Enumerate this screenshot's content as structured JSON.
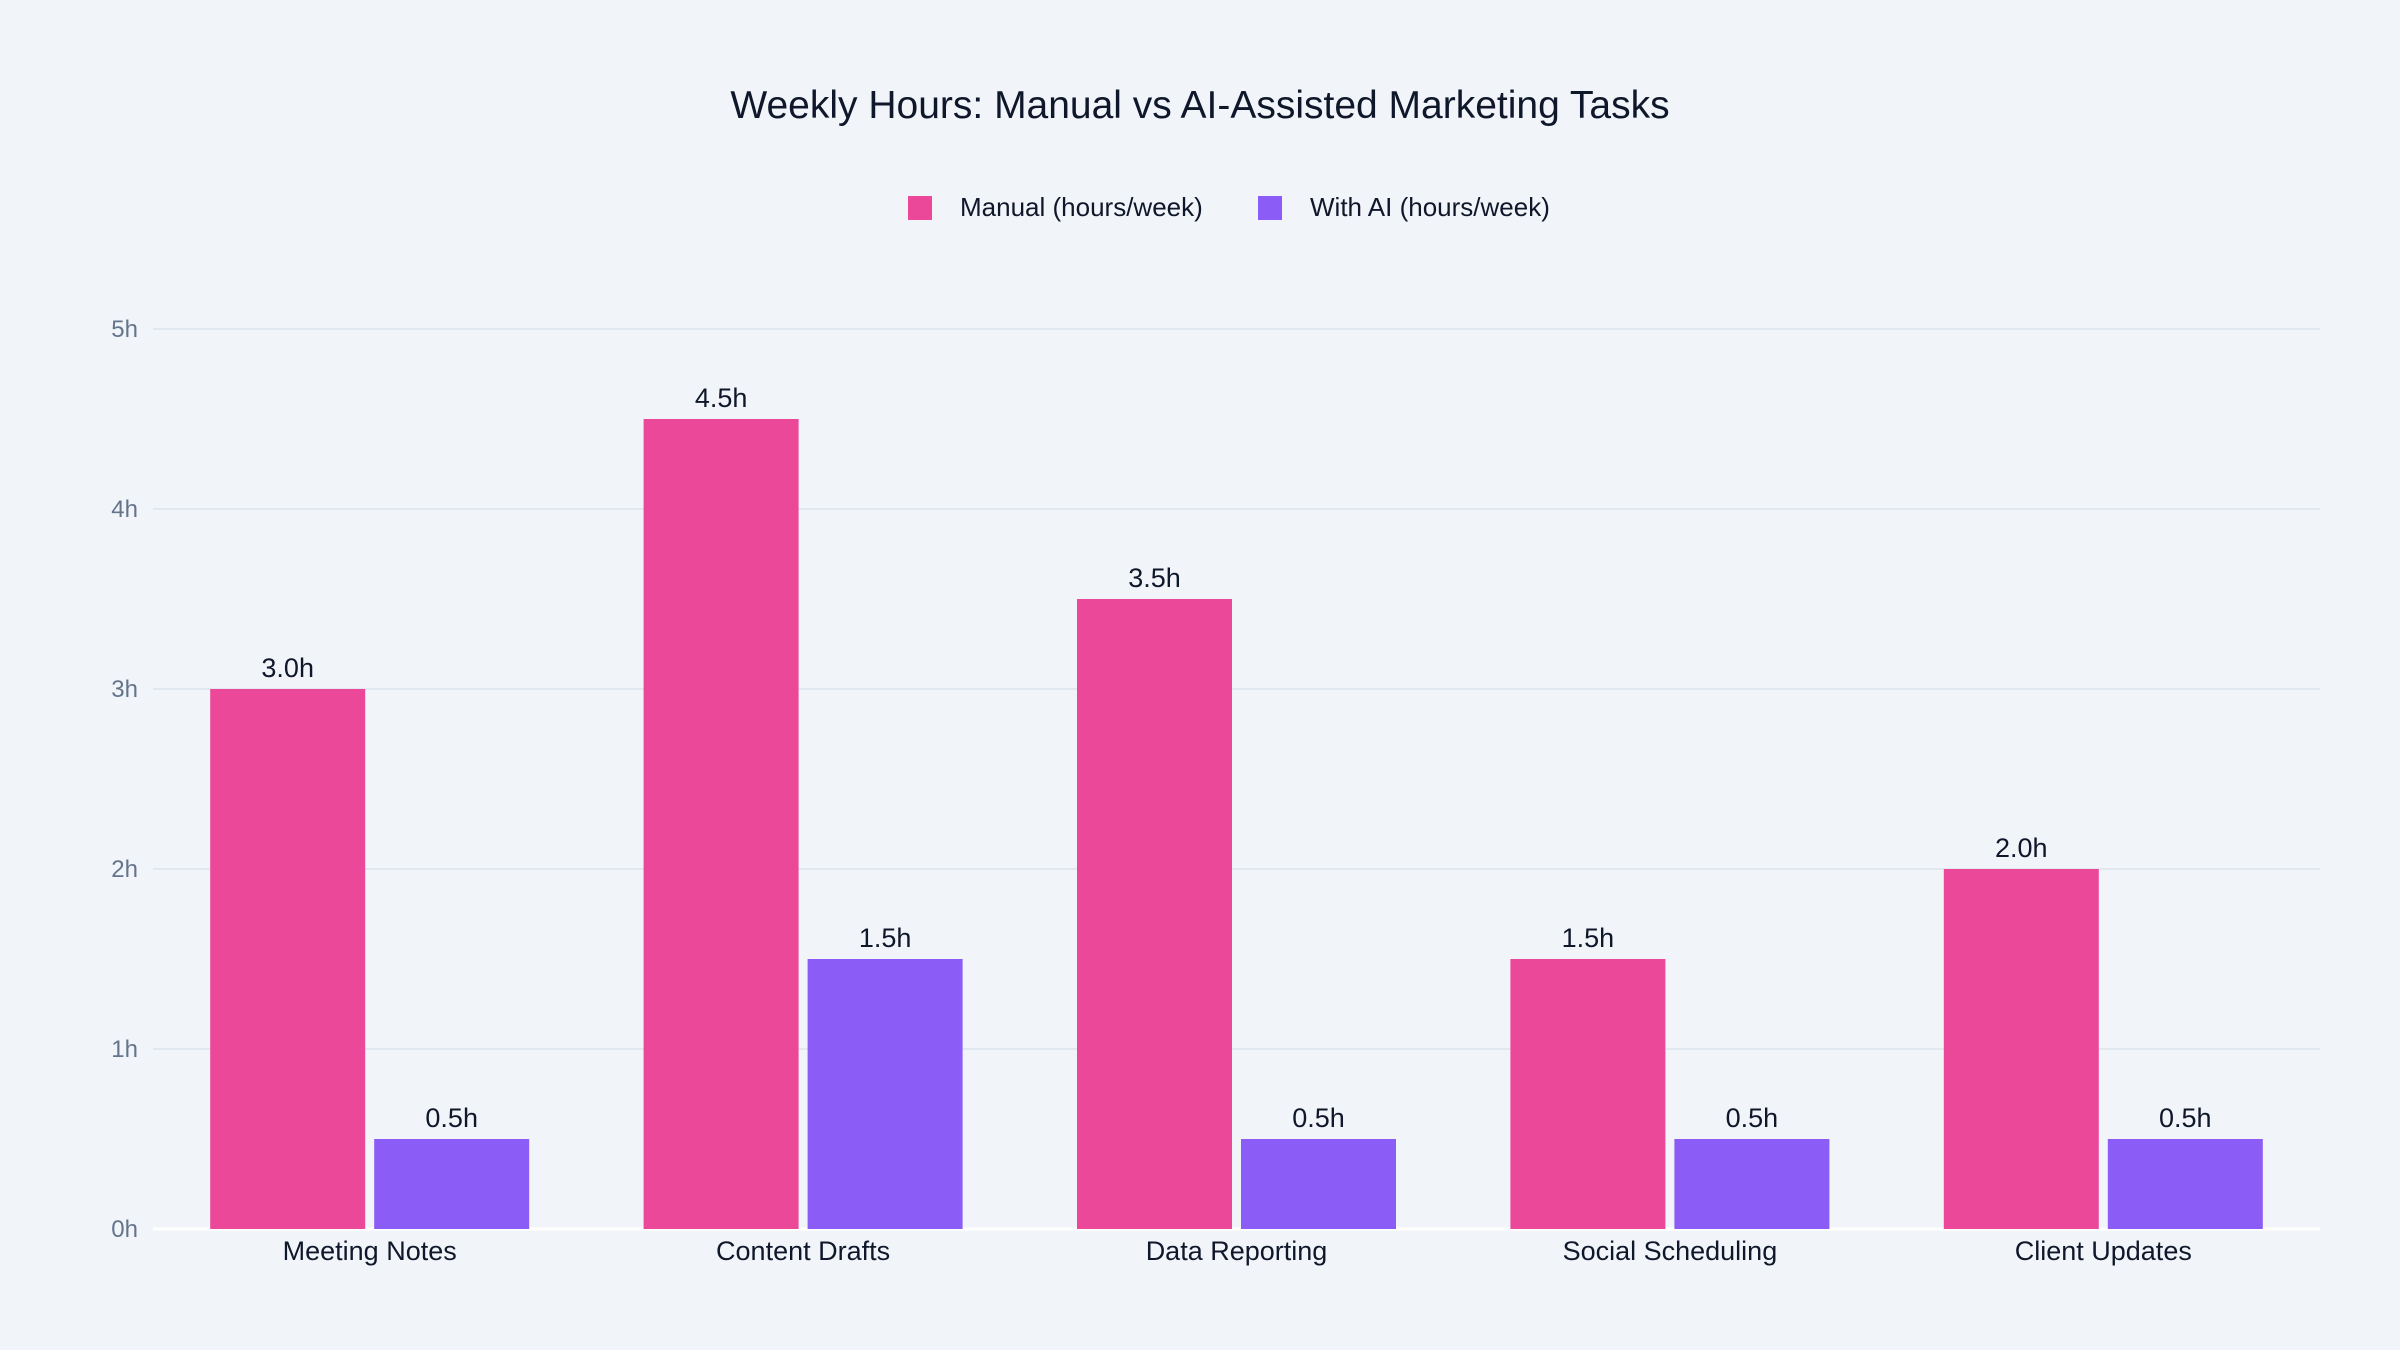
{
  "chart_data": {
    "type": "bar",
    "title": "Weekly Hours: Manual vs AI-Assisted Marketing Tasks",
    "categories": [
      "Meeting Notes",
      "Content Drafts",
      "Data Reporting",
      "Social Scheduling",
      "Client Updates"
    ],
    "series": [
      {
        "name": "Manual (hours/week)",
        "values": [
          3.0,
          4.5,
          3.5,
          1.5,
          2.0
        ],
        "labels": [
          "3.0h",
          "4.5h",
          "3.5h",
          "1.5h",
          "2.0h"
        ],
        "color": "#ec4899"
      },
      {
        "name": "With AI (hours/week)",
        "values": [
          0.5,
          1.5,
          0.5,
          0.5,
          0.5
        ],
        "labels": [
          "0.5h",
          "1.5h",
          "0.5h",
          "0.5h",
          "0.5h"
        ],
        "color": "#8b5cf6"
      }
    ],
    "xlabel": "",
    "ylabel": "",
    "ylim": [
      0,
      5
    ],
    "yticks": [
      "0h",
      "1h",
      "2h",
      "3h",
      "4h",
      "5h"
    ],
    "grid": true,
    "legend": "top-center",
    "background": "#f1f4f9"
  }
}
